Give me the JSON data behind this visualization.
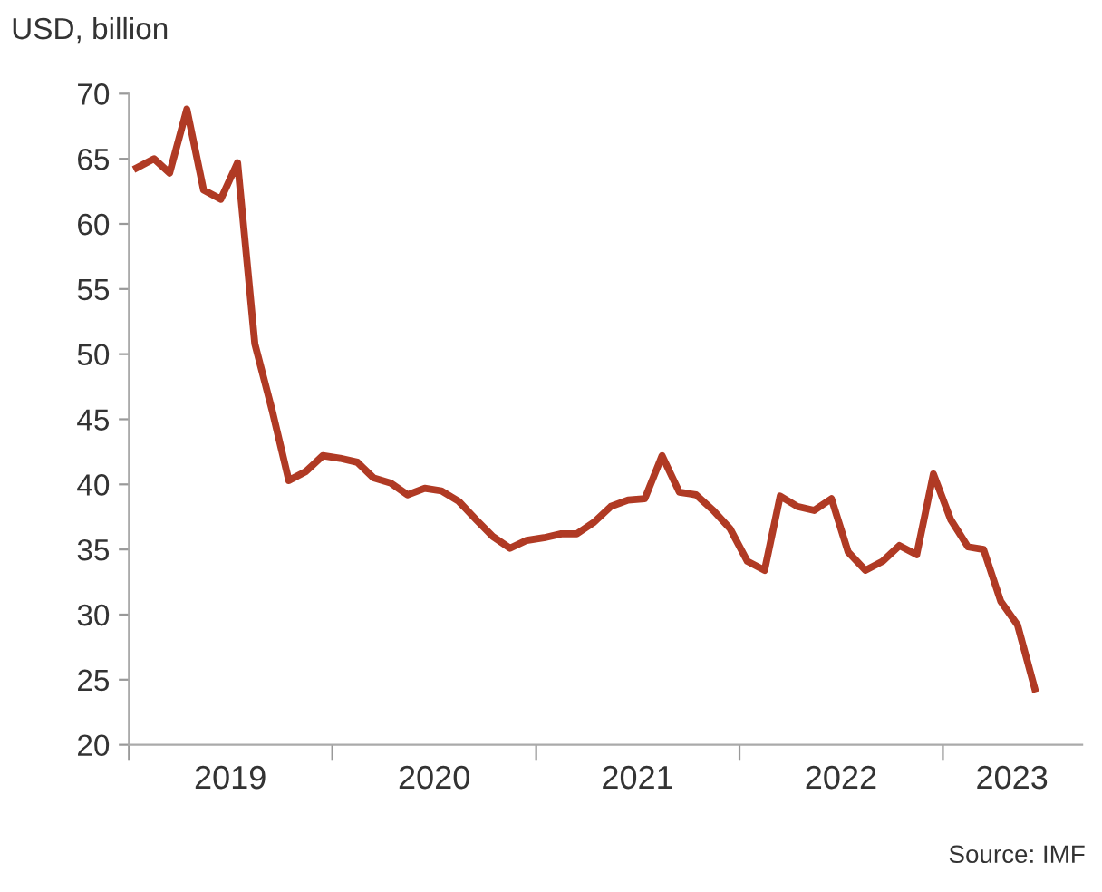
{
  "chart_data": {
    "type": "line",
    "ylabel": "USD, billion",
    "annotations": [
      "Source: IMF"
    ],
    "x": [
      "2019-01-15",
      "2019-02-15",
      "2019-03-15",
      "2019-04-15",
      "2019-05-15",
      "2019-06-15",
      "2019-07-15",
      "2019-08-15",
      "2019-09-15",
      "2019-10-15",
      "2019-11-15",
      "2019-12-15",
      "2020-01-15",
      "2020-02-15",
      "2020-03-15",
      "2020-04-15",
      "2020-05-15",
      "2020-06-15",
      "2020-07-15",
      "2020-08-15",
      "2020-09-15",
      "2020-10-15",
      "2020-11-15",
      "2020-12-15",
      "2021-01-15",
      "2021-02-15",
      "2021-03-15",
      "2021-04-15",
      "2021-05-15",
      "2021-06-15",
      "2021-07-15",
      "2021-08-15",
      "2021-09-15",
      "2021-10-15",
      "2021-11-15",
      "2021-12-15",
      "2022-01-15",
      "2022-02-15",
      "2022-03-15",
      "2022-04-15",
      "2022-05-15",
      "2022-06-15",
      "2022-07-15",
      "2022-08-15",
      "2022-09-15",
      "2022-10-15",
      "2022-11-15",
      "2022-12-15",
      "2023-01-15",
      "2023-02-15",
      "2023-03-15",
      "2023-04-15",
      "2023-05-15",
      "2023-06-15"
    ],
    "series": [
      {
        "color": "#b03a24",
        "values": [
          64.3,
          65.0,
          63.9,
          68.8,
          62.6,
          61.9,
          64.7,
          50.8,
          45.7,
          40.3,
          41.0,
          42.2,
          42.0,
          41.7,
          40.5,
          40.1,
          39.2,
          39.7,
          39.5,
          38.7,
          37.3,
          36.0,
          35.1,
          35.7,
          35.9,
          36.2,
          36.2,
          37.1,
          38.3,
          38.8,
          38.9,
          42.2,
          39.4,
          39.2,
          38.0,
          36.6,
          34.1,
          33.4,
          39.1,
          38.3,
          38.0,
          38.9,
          34.8,
          33.4,
          34.1,
          35.3,
          34.6,
          40.8,
          37.3,
          35.2,
          35.0,
          31.0,
          29.2,
          24.3
        ]
      }
    ],
    "xlim": [
      "2019-01-01",
      "2023-09-08"
    ],
    "xticks": [
      {
        "value": "2019-01-01",
        "label": null
      },
      {
        "value": "2019-07-02",
        "label": "2019"
      },
      {
        "value": "2020-01-01",
        "label": null
      },
      {
        "value": "2020-07-02",
        "label": "2020"
      },
      {
        "value": "2021-01-01",
        "label": null
      },
      {
        "value": "2021-07-02",
        "label": "2021"
      },
      {
        "value": "2022-01-01",
        "label": null
      },
      {
        "value": "2022-07-02",
        "label": "2022"
      },
      {
        "value": "2023-01-01",
        "label": null
      },
      {
        "value": "2023-05-05",
        "label": "2023"
      }
    ],
    "ylim": [
      20,
      70
    ],
    "yticks": [
      20,
      25,
      30,
      35,
      40,
      45,
      50,
      55,
      60,
      65,
      70
    ],
    "grid": false,
    "legend": false,
    "marker": "none",
    "line_style": "solid"
  }
}
